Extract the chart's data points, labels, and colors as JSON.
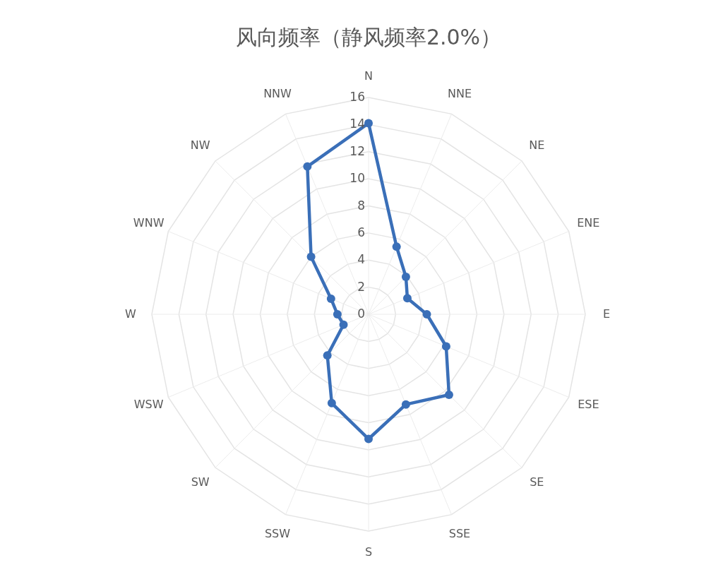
{
  "chart_data": {
    "type": "radar",
    "title": "风向频率（静风频率2.0%）",
    "categories": [
      "N",
      "NNE",
      "NE",
      "ENE",
      "E",
      "ESE",
      "SE",
      "SSE",
      "S",
      "SSW",
      "SW",
      "WSW",
      "W",
      "WNW",
      "NW",
      "NNW"
    ],
    "series": [
      {
        "color": "#3a6fb8",
        "values": [
          14.1,
          5.4,
          3.9,
          3.1,
          4.3,
          6.2,
          8.4,
          7.2,
          9.2,
          7.1,
          4.3,
          2.0,
          2.3,
          3.0,
          6.0,
          11.8
        ]
      }
    ],
    "ylim": [
      0,
      16
    ],
    "yticks": [
      0,
      2,
      4,
      6,
      8,
      10,
      12,
      14,
      16
    ],
    "grid": true,
    "marker": "circle"
  }
}
